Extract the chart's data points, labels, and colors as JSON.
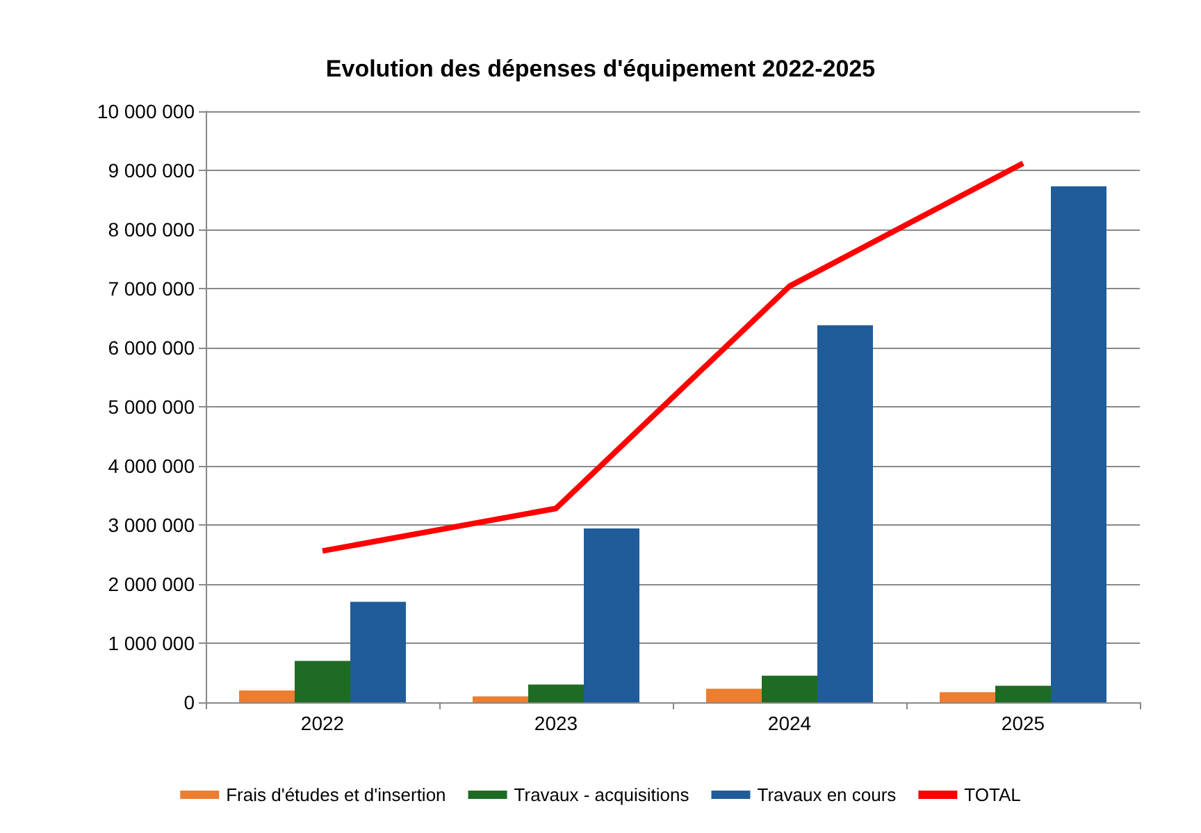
{
  "chart_data": {
    "type": "bar",
    "title": "Evolution des dépenses d'équipement 2022-2025",
    "categories": [
      "2022",
      "2023",
      "2024",
      "2025"
    ],
    "series": [
      {
        "name": "Frais d'études et d'insertion",
        "color": "#ed7d31",
        "values": [
          200000,
          100000,
          230000,
          170000
        ]
      },
      {
        "name": "Travaux - acquisitions",
        "color": "#1e6b24",
        "values": [
          700000,
          300000,
          450000,
          280000
        ]
      },
      {
        "name": "Travaux en cours",
        "color": "#1f5c99",
        "values": [
          1700000,
          2940000,
          6380000,
          8730000
        ]
      },
      {
        "name": "TOTAL",
        "type": "line",
        "color": "#ff0000",
        "marker": "none",
        "values": [
          2560000,
          3280000,
          7040000,
          9120000
        ]
      }
    ],
    "ylim": [
      0,
      10000000
    ],
    "yticks": [
      0,
      {
        "value": 1000000,
        "label": "1 000 000"
      },
      {
        "value": 2000000,
        "label": "2 000 000"
      },
      {
        "value": 3000000,
        "label": "3 000 000"
      },
      {
        "value": 4000000,
        "label": "4 000 000"
      },
      {
        "value": 5000000,
        "label": "5 000 000"
      },
      {
        "value": 6000000,
        "label": "6 000 000"
      },
      {
        "value": 7000000,
        "label": "7 000 000"
      },
      {
        "value": 8000000,
        "label": "8 000 000"
      },
      {
        "value": 9000000,
        "label": "9 000 000"
      },
      {
        "value": 10000000,
        "label": "10 000 000"
      }
    ],
    "grid": "y",
    "legend": "bottom"
  }
}
